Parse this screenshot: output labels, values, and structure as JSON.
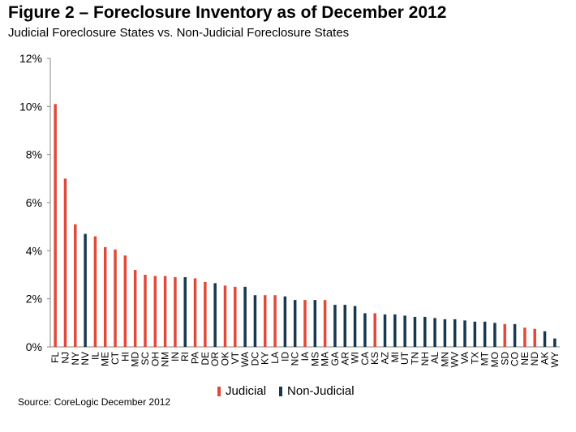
{
  "header": {
    "title": "Figure 2 – Foreclosure Inventory as of December 2012",
    "subtitle": "Judicial Foreclosure States vs. Non-Judicial Foreclosure States"
  },
  "source": "Source: CoreLogic December 2012",
  "colors": {
    "judicial": "#e04a3a",
    "non_judicial": "#17394f",
    "axis": "#888888"
  },
  "chart_data": {
    "type": "bar",
    "title": "",
    "xlabel": "",
    "ylabel": "",
    "ylim": [
      0,
      12
    ],
    "yticks": [
      "0%",
      "2%",
      "4%",
      "6%",
      "8%",
      "10%",
      "12%"
    ],
    "grid": false,
    "legend_position": "bottom",
    "legend": [
      {
        "name": "Judicial",
        "key": "J"
      },
      {
        "name": "Non-Judicial",
        "key": "N"
      }
    ],
    "categories": [
      "FL",
      "NJ",
      "NY",
      "NV",
      "IL",
      "ME",
      "CT",
      "HI",
      "MD",
      "SC",
      "OH",
      "NM",
      "IN",
      "RI",
      "PA",
      "DE",
      "OR",
      "OK",
      "VT",
      "WA",
      "DC",
      "KY",
      "LA",
      "ID",
      "NC",
      "IA",
      "MS",
      "MA",
      "GA",
      "AR",
      "WI",
      "CA",
      "KS",
      "AZ",
      "MI",
      "UT",
      "TN",
      "NH",
      "AL",
      "MN",
      "WV",
      "VA",
      "TX",
      "MT",
      "MO",
      "SD",
      "CO",
      "NE",
      "ND",
      "AK",
      "WY"
    ],
    "values": [
      10.1,
      7.0,
      5.1,
      4.7,
      4.6,
      4.15,
      4.05,
      3.8,
      3.2,
      3.0,
      2.95,
      2.95,
      2.9,
      2.9,
      2.85,
      2.7,
      2.65,
      2.55,
      2.5,
      2.5,
      2.15,
      2.15,
      2.15,
      2.1,
      1.95,
      1.95,
      1.95,
      1.95,
      1.75,
      1.75,
      1.7,
      1.4,
      1.4,
      1.35,
      1.35,
      1.3,
      1.25,
      1.25,
      1.2,
      1.15,
      1.15,
      1.1,
      1.05,
      1.05,
      1.0,
      0.95,
      0.95,
      0.8,
      0.75,
      0.65,
      0.35
    ],
    "types": [
      "J",
      "J",
      "J",
      "N",
      "J",
      "J",
      "J",
      "J",
      "J",
      "J",
      "J",
      "J",
      "J",
      "N",
      "J",
      "J",
      "N",
      "J",
      "J",
      "N",
      "N",
      "J",
      "J",
      "N",
      "N",
      "J",
      "N",
      "J",
      "N",
      "N",
      "N",
      "N",
      "J",
      "N",
      "N",
      "N",
      "N",
      "N",
      "N",
      "N",
      "N",
      "N",
      "N",
      "N",
      "N",
      "J",
      "N",
      "J",
      "J",
      "N",
      "N"
    ]
  }
}
